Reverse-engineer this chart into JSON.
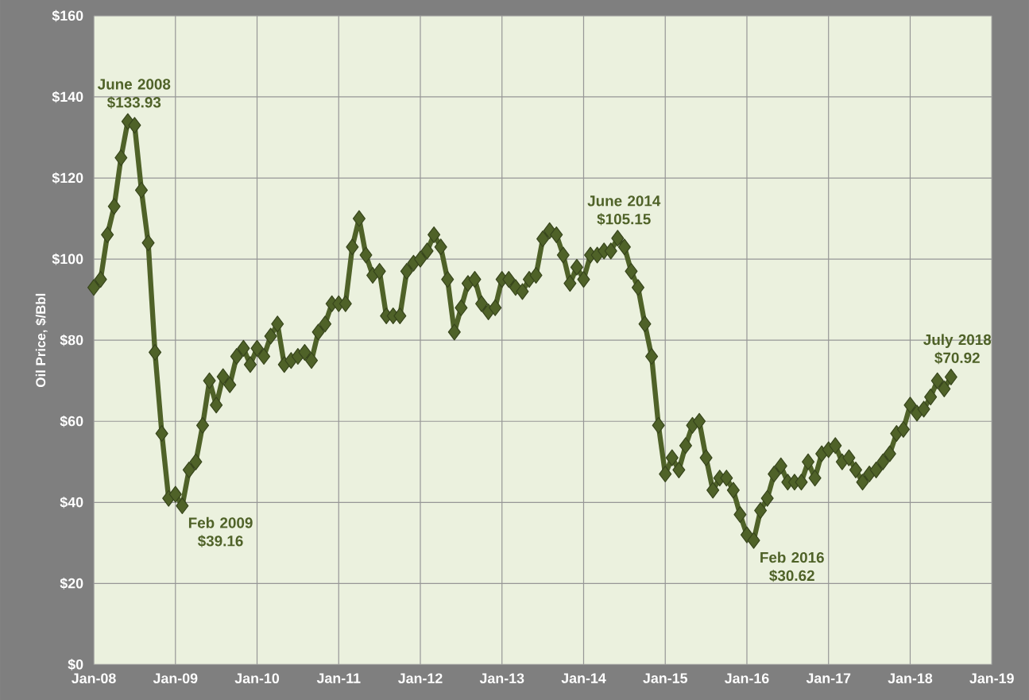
{
  "chart_data": {
    "type": "line",
    "ylabel": "Oil Price, $/Bbl",
    "x": [
      "2008-01",
      "2008-02",
      "2008-03",
      "2008-04",
      "2008-05",
      "2008-06",
      "2008-07",
      "2008-08",
      "2008-09",
      "2008-10",
      "2008-11",
      "2008-12",
      "2009-01",
      "2009-02",
      "2009-03",
      "2009-04",
      "2009-05",
      "2009-06",
      "2009-07",
      "2009-08",
      "2009-09",
      "2009-10",
      "2009-11",
      "2009-12",
      "2010-01",
      "2010-02",
      "2010-03",
      "2010-04",
      "2010-05",
      "2010-06",
      "2010-07",
      "2010-08",
      "2010-09",
      "2010-10",
      "2010-11",
      "2010-12",
      "2011-01",
      "2011-02",
      "2011-03",
      "2011-04",
      "2011-05",
      "2011-06",
      "2011-07",
      "2011-08",
      "2011-09",
      "2011-10",
      "2011-11",
      "2011-12",
      "2012-01",
      "2012-02",
      "2012-03",
      "2012-04",
      "2012-05",
      "2012-06",
      "2012-07",
      "2012-08",
      "2012-09",
      "2012-10",
      "2012-11",
      "2012-12",
      "2013-01",
      "2013-02",
      "2013-03",
      "2013-04",
      "2013-05",
      "2013-06",
      "2013-07",
      "2013-08",
      "2013-09",
      "2013-10",
      "2013-11",
      "2013-12",
      "2014-01",
      "2014-02",
      "2014-03",
      "2014-04",
      "2014-05",
      "2014-06",
      "2014-07",
      "2014-08",
      "2014-09",
      "2014-10",
      "2014-11",
      "2014-12",
      "2015-01",
      "2015-02",
      "2015-03",
      "2015-04",
      "2015-05",
      "2015-06",
      "2015-07",
      "2015-08",
      "2015-09",
      "2015-10",
      "2015-11",
      "2015-12",
      "2016-01",
      "2016-02",
      "2016-03",
      "2016-04",
      "2016-05",
      "2016-06",
      "2016-07",
      "2016-08",
      "2016-09",
      "2016-10",
      "2016-11",
      "2016-12",
      "2017-01",
      "2017-02",
      "2017-03",
      "2017-04",
      "2017-05",
      "2017-06",
      "2017-07",
      "2017-08",
      "2017-09",
      "2017-10",
      "2017-11",
      "2017-12",
      "2018-01",
      "2018-02",
      "2018-03",
      "2018-04",
      "2018-05",
      "2018-06",
      "2018-07"
    ],
    "series": [
      {
        "color": "#4f6228",
        "values": [
          93,
          95,
          106,
          113,
          125,
          133.93,
          133,
          117,
          104,
          77,
          57,
          41,
          42,
          39.16,
          48,
          50,
          59,
          70,
          64,
          71,
          69,
          76,
          78,
          74,
          78,
          76,
          81,
          84,
          74,
          75,
          76,
          77,
          75,
          82,
          84,
          89,
          89,
          89,
          103,
          110,
          101,
          96,
          97,
          86,
          86,
          86,
          97,
          99,
          100,
          102,
          106,
          103,
          95,
          82,
          88,
          94,
          95,
          89,
          87,
          88,
          95,
          95,
          93,
          92,
          95,
          96,
          105,
          107,
          106,
          101,
          94,
          98,
          95,
          101,
          101,
          102,
          102,
          105.15,
          103,
          97,
          93,
          84,
          76,
          59,
          47,
          51,
          48,
          54,
          59,
          60,
          51,
          43,
          46,
          46,
          43,
          37,
          32,
          30.62,
          38,
          41,
          47,
          49,
          45,
          45,
          45,
          50,
          46,
          52,
          53,
          54,
          50,
          51,
          48,
          45,
          47,
          48,
          50,
          52,
          57,
          58,
          64,
          62,
          63,
          66,
          70,
          68,
          70.92
        ]
      }
    ],
    "xlim": [
      "2008-01",
      "2019-01"
    ],
    "xticks": [
      {
        "value": "2008-01",
        "label": "Jan-08"
      },
      {
        "value": "2009-01",
        "label": "Jan-09"
      },
      {
        "value": "2010-01",
        "label": "Jan-10"
      },
      {
        "value": "2011-01",
        "label": "Jan-11"
      },
      {
        "value": "2012-01",
        "label": "Jan-12"
      },
      {
        "value": "2013-01",
        "label": "Jan-13"
      },
      {
        "value": "2014-01",
        "label": "Jan-14"
      },
      {
        "value": "2015-01",
        "label": "Jan-15"
      },
      {
        "value": "2016-01",
        "label": "Jan-16"
      },
      {
        "value": "2017-01",
        "label": "Jan-17"
      },
      {
        "value": "2018-01",
        "label": "Jan-18"
      },
      {
        "value": "2019-01",
        "label": "Jan-19"
      }
    ],
    "ylim": [
      0,
      160
    ],
    "yticks": [
      {
        "value": 0,
        "label": "$0"
      },
      {
        "value": 20,
        "label": "$20"
      },
      {
        "value": 40,
        "label": "$40"
      },
      {
        "value": 60,
        "label": "$60"
      },
      {
        "value": 80,
        "label": "$80"
      },
      {
        "value": 100,
        "label": "$100"
      },
      {
        "value": 120,
        "label": "$120"
      },
      {
        "value": 140,
        "label": "$140"
      },
      {
        "value": 160,
        "label": "$160"
      }
    ],
    "grid": true,
    "marker": "diamond",
    "annotations": [
      {
        "text": "June 2008 $133.93",
        "x": "2008-06",
        "y": 133.93
      },
      {
        "text": "Feb 2009 $39.16",
        "x": "2009-02",
        "y": 39.16
      },
      {
        "text": "June 2014 $105.15",
        "x": "2014-06",
        "y": 105.15
      },
      {
        "text": "Feb 2016 $30.62",
        "x": "2016-02",
        "y": 30.62
      },
      {
        "text": "July 2018 $70.92",
        "x": "2018-07",
        "y": 70.92
      }
    ]
  }
}
